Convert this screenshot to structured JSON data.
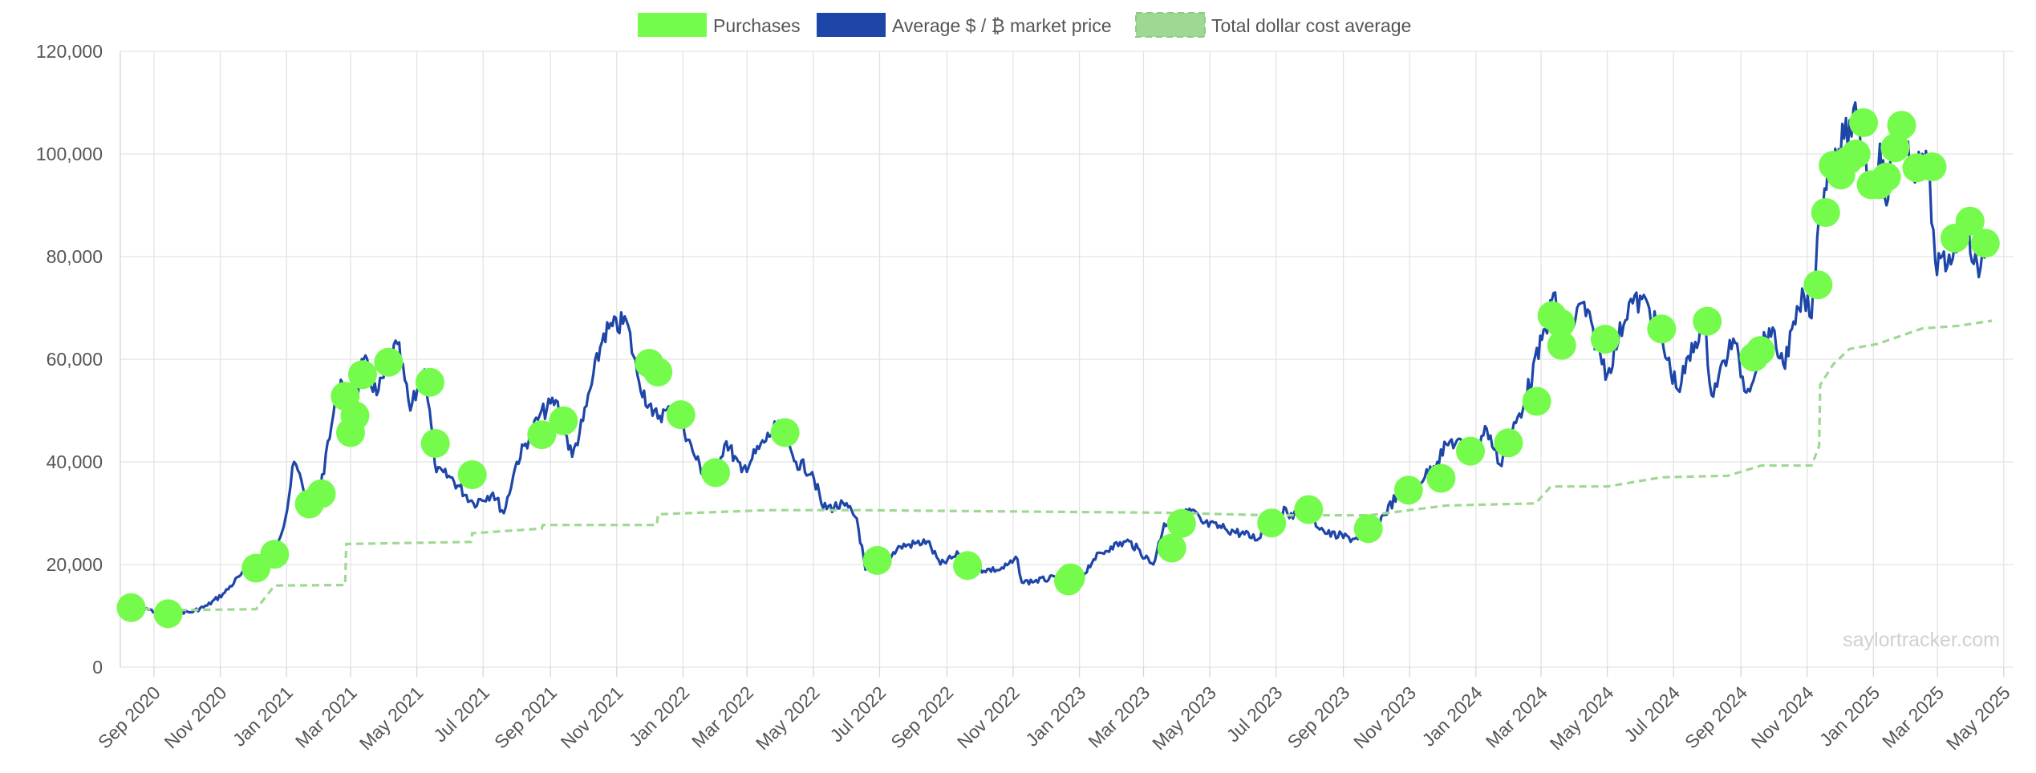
{
  "watermark": "saylortracker.com",
  "colors": {
    "purchases": "#75fb4c",
    "market_price": "#1e45a8",
    "cost_average": "#9ed893",
    "grid": "#e3e3e3",
    "text": "#555555"
  },
  "chart_data": {
    "type": "line",
    "title": "",
    "xlabel": "",
    "ylabel": "",
    "legend_placement": "top-center",
    "grid": true,
    "ylim": [
      0,
      120000
    ],
    "y_ticks": [
      "0",
      "20,000",
      "40,000",
      "60,000",
      "80,000",
      "100,000",
      "120,000"
    ],
    "x_range": [
      "2020-08-01",
      "2025-05-10"
    ],
    "x_ticks": [
      {
        "date": "2020-09-01",
        "label": "Sep 2020"
      },
      {
        "date": "2020-11-01",
        "label": "Nov 2020"
      },
      {
        "date": "2021-01-01",
        "label": "Jan 2021"
      },
      {
        "date": "2021-03-01",
        "label": "Mar 2021"
      },
      {
        "date": "2021-05-01",
        "label": "May 2021"
      },
      {
        "date": "2021-07-01",
        "label": "Jul 2021"
      },
      {
        "date": "2021-09-01",
        "label": "Sep 2021"
      },
      {
        "date": "2021-11-01",
        "label": "Nov 2021"
      },
      {
        "date": "2022-01-01",
        "label": "Jan 2022"
      },
      {
        "date": "2022-03-01",
        "label": "Mar 2022"
      },
      {
        "date": "2022-05-01",
        "label": "May 2022"
      },
      {
        "date": "2022-07-01",
        "label": "Jul 2022"
      },
      {
        "date": "2022-09-01",
        "label": "Sep 2022"
      },
      {
        "date": "2022-11-01",
        "label": "Nov 2022"
      },
      {
        "date": "2023-01-01",
        "label": "Jan 2023"
      },
      {
        "date": "2023-03-01",
        "label": "Mar 2023"
      },
      {
        "date": "2023-05-01",
        "label": "May 2023"
      },
      {
        "date": "2023-07-01",
        "label": "Jul 2023"
      },
      {
        "date": "2023-09-01",
        "label": "Sep 2023"
      },
      {
        "date": "2023-11-01",
        "label": "Nov 2023"
      },
      {
        "date": "2024-01-01",
        "label": "Jan 2024"
      },
      {
        "date": "2024-03-01",
        "label": "Mar 2024"
      },
      {
        "date": "2024-05-01",
        "label": "May 2024"
      },
      {
        "date": "2024-07-01",
        "label": "Jul 2024"
      },
      {
        "date": "2024-09-01",
        "label": "Sep 2024"
      },
      {
        "date": "2024-11-01",
        "label": "Nov 2024"
      },
      {
        "date": "2025-01-01",
        "label": "Jan 2025"
      },
      {
        "date": "2025-03-01",
        "label": "Mar 2025"
      },
      {
        "date": "2025-05-01",
        "label": "May 2025"
      }
    ],
    "legend": [
      {
        "key": "purchases",
        "label": "Purchases"
      },
      {
        "key": "market_price",
        "label": "Average $ / ₿ market price"
      },
      {
        "key": "cost_average",
        "label": "Total dollar cost average"
      }
    ],
    "series": [
      {
        "name": "Average $ / ₿ market price",
        "type": "line",
        "points": [
          [
            "2020-08-10",
            11600
          ],
          [
            "2020-08-25",
            11500
          ],
          [
            "2020-09-05",
            10400
          ],
          [
            "2020-09-20",
            10900
          ],
          [
            "2020-10-05",
            10700
          ],
          [
            "2020-10-20",
            12000
          ],
          [
            "2020-11-05",
            14500
          ],
          [
            "2020-11-20",
            18000
          ],
          [
            "2020-12-01",
            19000
          ],
          [
            "2020-12-15",
            19500
          ],
          [
            "2020-12-31",
            29000
          ],
          [
            "2021-01-08",
            40000
          ],
          [
            "2021-01-20",
            33000
          ],
          [
            "2021-02-01",
            34000
          ],
          [
            "2021-02-08",
            44000
          ],
          [
            "2021-02-20",
            56000
          ],
          [
            "2021-03-01",
            47000
          ],
          [
            "2021-03-13",
            60000
          ],
          [
            "2021-03-25",
            53000
          ],
          [
            "2021-04-13",
            63000
          ],
          [
            "2021-04-25",
            50000
          ],
          [
            "2021-05-08",
            58000
          ],
          [
            "2021-05-19",
            38000
          ],
          [
            "2021-06-01",
            37000
          ],
          [
            "2021-06-22",
            32000
          ],
          [
            "2021-07-10",
            34000
          ],
          [
            "2021-07-20",
            30000
          ],
          [
            "2021-08-01",
            40000
          ],
          [
            "2021-08-22",
            49000
          ],
          [
            "2021-09-06",
            52000
          ],
          [
            "2021-09-21",
            41000
          ],
          [
            "2021-10-01",
            48000
          ],
          [
            "2021-10-20",
            65000
          ],
          [
            "2021-11-10",
            67500
          ],
          [
            "2021-11-20",
            57000
          ],
          [
            "2021-12-04",
            49000
          ],
          [
            "2021-12-27",
            50000
          ],
          [
            "2022-01-10",
            42000
          ],
          [
            "2022-01-24",
            36000
          ],
          [
            "2022-02-10",
            44000
          ],
          [
            "2022-02-24",
            38000
          ],
          [
            "2022-03-28",
            47000
          ],
          [
            "2022-04-15",
            40000
          ],
          [
            "2022-04-30",
            38000
          ],
          [
            "2022-05-10",
            31000
          ],
          [
            "2022-05-30",
            31500
          ],
          [
            "2022-06-10",
            29000
          ],
          [
            "2022-06-18",
            19000
          ],
          [
            "2022-07-01",
            19500
          ],
          [
            "2022-07-20",
            23500
          ],
          [
            "2022-08-14",
            24500
          ],
          [
            "2022-08-26",
            20000
          ],
          [
            "2022-09-12",
            22000
          ],
          [
            "2022-09-20",
            19000
          ],
          [
            "2022-10-20",
            19000
          ],
          [
            "2022-11-05",
            21000
          ],
          [
            "2022-11-09",
            16500
          ],
          [
            "2022-12-15",
            17500
          ],
          [
            "2022-12-31",
            16600
          ],
          [
            "2023-01-14",
            21000
          ],
          [
            "2023-01-30",
            23500
          ],
          [
            "2023-02-16",
            24500
          ],
          [
            "2023-03-10",
            20000
          ],
          [
            "2023-03-20",
            28000
          ],
          [
            "2023-04-14",
            30500
          ],
          [
            "2023-04-25",
            28000
          ],
          [
            "2023-05-15",
            27000
          ],
          [
            "2023-06-15",
            25000
          ],
          [
            "2023-06-25",
            30500
          ],
          [
            "2023-07-15",
            30000
          ],
          [
            "2023-07-31",
            29500
          ],
          [
            "2023-08-17",
            26000
          ],
          [
            "2023-09-11",
            25000
          ],
          [
            "2023-10-01",
            27500
          ],
          [
            "2023-10-24",
            34500
          ],
          [
            "2023-11-15",
            37000
          ],
          [
            "2023-12-08",
            44000
          ],
          [
            "2023-12-31",
            42500
          ],
          [
            "2024-01-11",
            46500
          ],
          [
            "2024-01-23",
            39500
          ],
          [
            "2024-02-15",
            52000
          ],
          [
            "2024-03-05",
            66000
          ],
          [
            "2024-03-14",
            73000
          ],
          [
            "2024-03-20",
            62000
          ],
          [
            "2024-04-08",
            71000
          ],
          [
            "2024-05-01",
            57000
          ],
          [
            "2024-05-21",
            71000
          ],
          [
            "2024-06-07",
            71000
          ],
          [
            "2024-07-05",
            54000
          ],
          [
            "2024-07-29",
            68000
          ],
          [
            "2024-08-05",
            53000
          ],
          [
            "2024-08-25",
            64000
          ],
          [
            "2024-09-06",
            53500
          ],
          [
            "2024-09-27",
            66000
          ],
          [
            "2024-10-10",
            59000
          ],
          [
            "2024-10-29",
            72500
          ],
          [
            "2024-11-05",
            68000
          ],
          [
            "2024-11-12",
            88000
          ],
          [
            "2024-11-22",
            99000
          ],
          [
            "2024-12-05",
            103000
          ],
          [
            "2024-12-17",
            107000
          ],
          [
            "2024-12-30",
            92000
          ],
          [
            "2025-01-07",
            102000
          ],
          [
            "2025-01-13",
            90000
          ],
          [
            "2025-01-22",
            106000
          ],
          [
            "2025-02-05",
            97000
          ],
          [
            "2025-02-20",
            98000
          ],
          [
            "2025-02-27",
            79000
          ],
          [
            "2025-03-10",
            78000
          ],
          [
            "2025-03-25",
            88000
          ],
          [
            "2025-04-08",
            76000
          ],
          [
            "2025-04-15",
            84000
          ]
        ]
      },
      {
        "name": "Total dollar cost average",
        "type": "line",
        "points": [
          [
            "2020-08-11",
            11600
          ],
          [
            "2020-09-14",
            11100
          ],
          [
            "2020-12-04",
            11300
          ],
          [
            "2020-12-21",
            15900
          ],
          [
            "2021-02-24",
            16000
          ],
          [
            "2021-02-25",
            24000
          ],
          [
            "2021-06-20",
            24400
          ],
          [
            "2021-06-21",
            26100
          ],
          [
            "2021-08-24",
            27000
          ],
          [
            "2021-08-25",
            27700
          ],
          [
            "2021-12-08",
            27700
          ],
          [
            "2021-12-09",
            29800
          ],
          [
            "2022-03-20",
            30600
          ],
          [
            "2022-06-10",
            30600
          ],
          [
            "2022-09-20",
            30400
          ],
          [
            "2023-03-20",
            30100
          ],
          [
            "2023-06-25",
            29600
          ],
          [
            "2023-09-25",
            29600
          ],
          [
            "2023-12-05",
            31500
          ],
          [
            "2024-02-25",
            31900
          ],
          [
            "2024-03-10",
            35200
          ],
          [
            "2024-05-01",
            35200
          ],
          [
            "2024-06-20",
            37000
          ],
          [
            "2024-08-20",
            37300
          ],
          [
            "2024-09-20",
            39300
          ],
          [
            "2024-11-05",
            39300
          ],
          [
            "2024-11-12",
            43000
          ],
          [
            "2024-11-13",
            55000
          ],
          [
            "2024-11-25",
            59000
          ],
          [
            "2024-12-10",
            62000
          ],
          [
            "2025-01-05",
            63000
          ],
          [
            "2025-02-15",
            66000
          ],
          [
            "2025-03-20",
            66500
          ],
          [
            "2025-04-20",
            67500
          ]
        ]
      }
    ],
    "purchases": [
      [
        "2020-08-11",
        11600
      ],
      [
        "2020-09-14",
        10400
      ],
      [
        "2020-12-04",
        19300
      ],
      [
        "2020-12-21",
        22000
      ],
      [
        "2021-01-22",
        31800
      ],
      [
        "2021-02-02",
        33800
      ],
      [
        "2021-02-24",
        52800
      ],
      [
        "2021-03-01",
        45700
      ],
      [
        "2021-03-05",
        49000
      ],
      [
        "2021-03-12",
        57000
      ],
      [
        "2021-04-05",
        59400
      ],
      [
        "2021-05-13",
        55500
      ],
      [
        "2021-05-18",
        43600
      ],
      [
        "2021-06-21",
        37500
      ],
      [
        "2021-08-24",
        45300
      ],
      [
        "2021-09-13",
        48000
      ],
      [
        "2021-12-01",
        59200
      ],
      [
        "2021-12-09",
        57500
      ],
      [
        "2021-12-30",
        49200
      ],
      [
        "2022-01-31",
        37900
      ],
      [
        "2022-04-05",
        45700
      ],
      [
        "2022-06-29",
        20800
      ],
      [
        "2022-09-20",
        19800
      ],
      [
        "2022-12-24",
        17400
      ],
      [
        "2022-12-22",
        16800
      ],
      [
        "2023-03-27",
        23200
      ],
      [
        "2023-04-05",
        28000
      ],
      [
        "2023-06-27",
        28100
      ],
      [
        "2023-07-31",
        30700
      ],
      [
        "2023-09-24",
        27000
      ],
      [
        "2023-10-31",
        34500
      ],
      [
        "2023-11-30",
        36800
      ],
      [
        "2023-12-27",
        42100
      ],
      [
        "2024-01-31",
        43700
      ],
      [
        "2024-02-26",
        51800
      ],
      [
        "2024-03-11",
        68500
      ],
      [
        "2024-03-19",
        67000
      ],
      [
        "2024-03-20",
        62700
      ],
      [
        "2024-04-29",
        63900
      ],
      [
        "2024-06-20",
        65900
      ],
      [
        "2024-08-01",
        67400
      ],
      [
        "2024-09-13",
        60400
      ],
      [
        "2024-09-19",
        61700
      ],
      [
        "2024-11-11",
        74500
      ],
      [
        "2024-11-18",
        88600
      ],
      [
        "2024-11-25",
        97800
      ],
      [
        "2024-12-02",
        95900
      ],
      [
        "2024-12-09",
        98800
      ],
      [
        "2024-12-16",
        100000
      ],
      [
        "2024-12-23",
        106100
      ],
      [
        "2024-12-30",
        94000
      ],
      [
        "2025-01-06",
        94000
      ],
      [
        "2025-01-13",
        95500
      ],
      [
        "2025-01-21",
        101200
      ],
      [
        "2025-01-27",
        105600
      ],
      [
        "2025-02-10",
        97300
      ],
      [
        "2025-02-24",
        97500
      ],
      [
        "2025-03-17",
        83600
      ],
      [
        "2025-03-31",
        86900
      ],
      [
        "2025-04-14",
        82600
      ]
    ]
  }
}
